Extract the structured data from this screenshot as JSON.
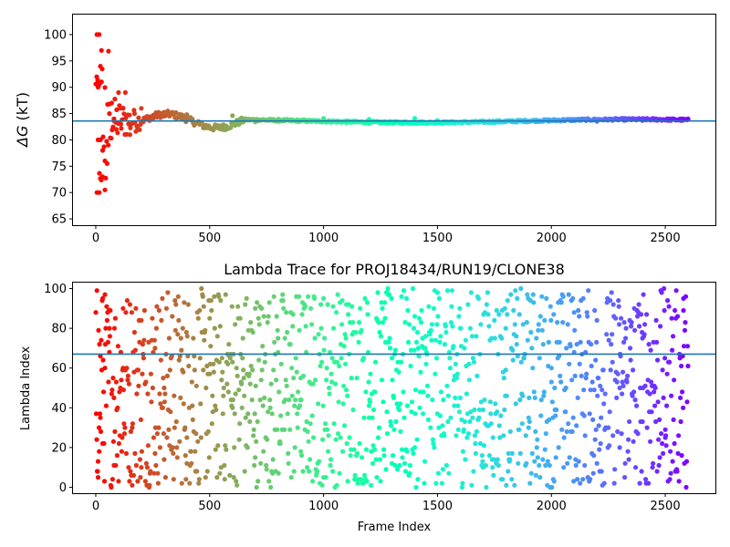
{
  "colors": {
    "reference_line": "#1f77b4",
    "colormap": "rainbow"
  },
  "chart_data": [
    {
      "type": "scatter",
      "title": "",
      "xlabel": "",
      "ylabel": "ΔG (kT)",
      "ylabel_symbol": "ΔG",
      "ylabel_unit": " (kT)",
      "xlim": [
        -100,
        2720
      ],
      "ylim": [
        63.8,
        103.8
      ],
      "xticks": [
        0,
        500,
        1000,
        1500,
        2000,
        2500
      ],
      "yticks": [
        65,
        70,
        75,
        80,
        85,
        90,
        95,
        100
      ],
      "reference_line": 83.6,
      "color_by": "frame index (rainbow colormap, red at 0 to violet at end)",
      "series": [
        {
          "points_sampled": [
            [
              5,
              100
            ],
            [
              15,
              100
            ],
            [
              25,
              97
            ],
            [
              20,
              94
            ],
            [
              10,
              90
            ],
            [
              15,
              90.5
            ],
            [
              25,
              91
            ],
            [
              10,
              80
            ],
            [
              20,
              80
            ],
            [
              5,
              70
            ],
            [
              15,
              70
            ],
            [
              30,
              73
            ],
            [
              40,
              70.5
            ],
            [
              30,
              78
            ],
            [
              40,
              76
            ],
            [
              50,
              75.5
            ],
            [
              55,
              79
            ],
            [
              60,
              85
            ],
            [
              70,
              87
            ],
            [
              80,
              84
            ],
            [
              90,
              82
            ],
            [
              100,
              89
            ],
            [
              110,
              83
            ],
            [
              120,
              86
            ],
            [
              130,
              89
            ],
            [
              150,
              81
            ],
            [
              170,
              85
            ],
            [
              200,
              86
            ],
            [
              250,
              84
            ],
            [
              300,
              84.5
            ],
            [
              400,
              84.8
            ],
            [
              450,
              83.5
            ],
            [
              500,
              82.2
            ],
            [
              550,
              82.7
            ],
            [
              600,
              84.6
            ],
            [
              700,
              83.4
            ],
            [
              800,
              83.5
            ],
            [
              1000,
              84.1
            ],
            [
              1200,
              83.9
            ],
            [
              1400,
              84.1
            ],
            [
              1500,
              83.7
            ],
            [
              1800,
              83.4
            ],
            [
              2000,
              83.7
            ],
            [
              2200,
              83.5
            ],
            [
              2400,
              83.7
            ],
            [
              2600,
              83.9
            ]
          ]
        }
      ]
    },
    {
      "type": "scatter",
      "title": "Lambda Trace for PROJ18434/RUN19/CLONE38",
      "xlabel": "Frame Index",
      "ylabel": "Lambda Index",
      "xlim": [
        -100,
        2720
      ],
      "ylim": [
        -3,
        103
      ],
      "xticks": [
        0,
        500,
        1000,
        1500,
        2000,
        2500
      ],
      "yticks": [
        0,
        20,
        40,
        60,
        80,
        100
      ],
      "reference_line": 67,
      "color_by": "frame index (rainbow colormap, red at 0 to violet at end)",
      "series": [
        {
          "frame_range": [
            0,
            2600
          ],
          "lambda_range": [
            0,
            100
          ],
          "points_sampled": [
            [
              5,
              99
            ],
            [
              10,
              5
            ],
            [
              15,
              18
            ],
            [
              20,
              35
            ],
            [
              30,
              95
            ],
            [
              40,
              60
            ],
            [
              60,
              80
            ],
            [
              80,
              45
            ],
            [
              120,
              90
            ],
            [
              160,
              30
            ],
            [
              200,
              10
            ],
            [
              260,
              70
            ],
            [
              300,
              50
            ],
            [
              400,
              25
            ],
            [
              500,
              85
            ],
            [
              600,
              40
            ],
            [
              700,
              15
            ],
            [
              800,
              75
            ],
            [
              900,
              55
            ],
            [
              1000,
              5
            ],
            [
              1100,
              92
            ],
            [
              1200,
              35
            ],
            [
              1300,
              65
            ],
            [
              1400,
              20
            ],
            [
              1500,
              98
            ],
            [
              1600,
              45
            ],
            [
              1700,
              10
            ],
            [
              1800,
              80
            ],
            [
              1900,
              30
            ],
            [
              2000,
              60
            ],
            [
              2100,
              88
            ],
            [
              2200,
              12
            ],
            [
              2300,
              50
            ],
            [
              2400,
              75
            ],
            [
              2500,
              25
            ],
            [
              2580,
              95
            ]
          ]
        }
      ]
    }
  ]
}
